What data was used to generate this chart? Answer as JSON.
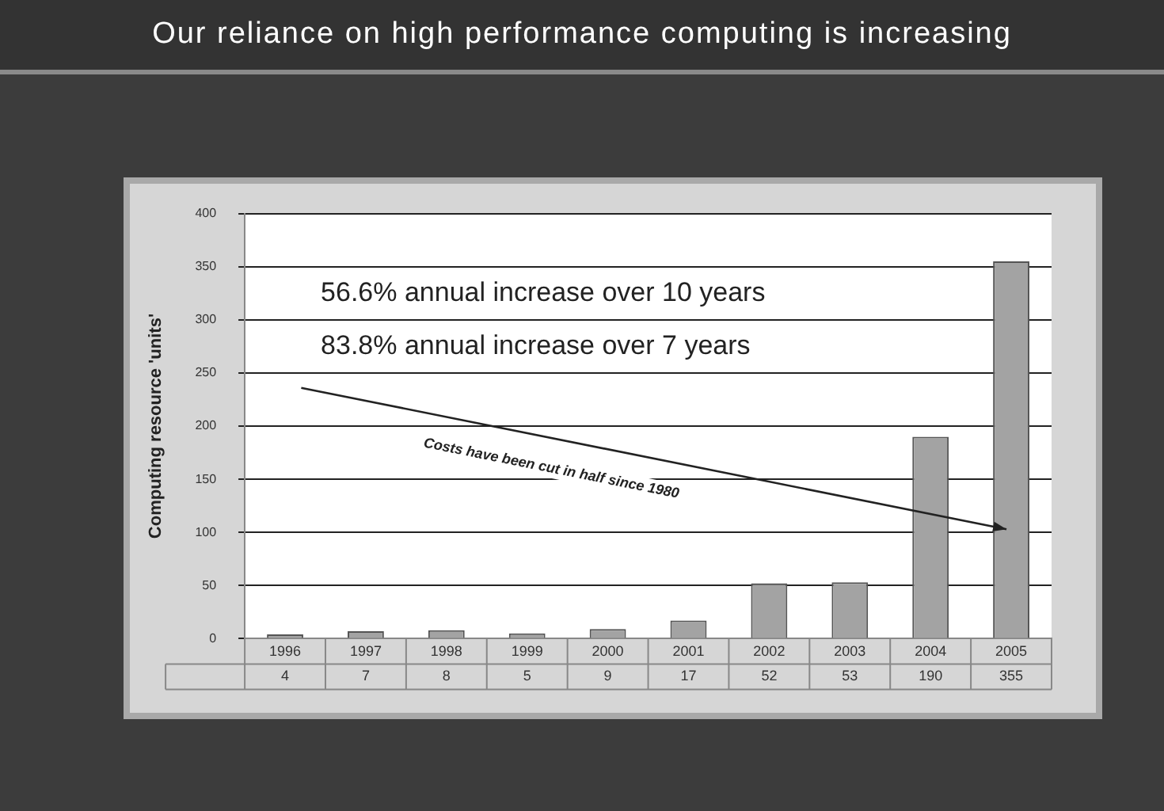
{
  "chart_data": {
    "type": "bar",
    "title": "Our reliance on high performance computing is increasing",
    "ylabel": "Computing resource 'units'",
    "categories": [
      "1996",
      "1997",
      "1998",
      "1999",
      "2000",
      "2001",
      "2002",
      "2003",
      "2004",
      "2005"
    ],
    "values": [
      4,
      7,
      8,
      5,
      9,
      17,
      52,
      53,
      190,
      355
    ],
    "color": "#a3a3a3",
    "ylim": [
      0,
      400
    ],
    "yticks": [
      0,
      50,
      100,
      150,
      200,
      250,
      300,
      350,
      400
    ],
    "grid": "y",
    "data_labels": true,
    "legend": false,
    "annotations": [
      "56.6% annual increase over 10 years",
      "83.8% annual increase over 7 years",
      "Costs have been cut in half since 1980"
    ]
  }
}
